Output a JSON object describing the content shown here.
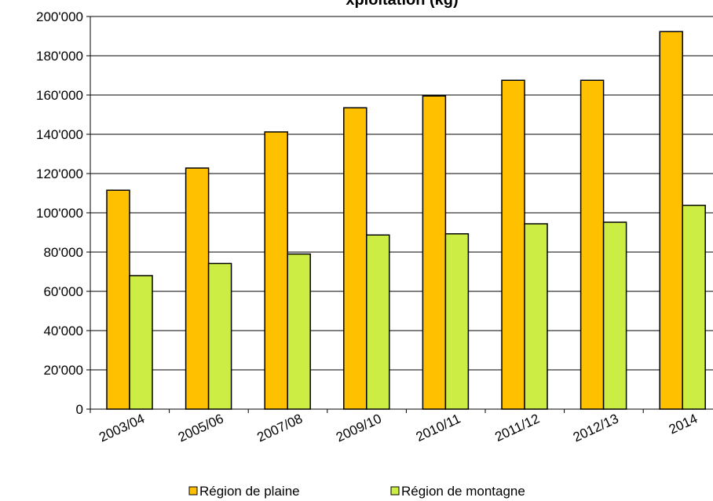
{
  "chart_data": {
    "type": "bar",
    "title": "xploitation (kg)",
    "categories": [
      "2003/04",
      "2005/06",
      "2007/08",
      "2009/10",
      "2010/11",
      "2011/12",
      "2012/13",
      "2014"
    ],
    "series": [
      {
        "name": "Région de plaine",
        "color": "#FFC000",
        "values": [
          111500,
          122800,
          141200,
          153500,
          159500,
          167500,
          167500,
          192300
        ]
      },
      {
        "name": "Région de montagne",
        "color": "#CCEE44",
        "values": [
          68000,
          74200,
          79000,
          88700,
          89300,
          94400,
          95200,
          103800
        ]
      }
    ],
    "ylim": [
      0,
      200000
    ],
    "yticks": [
      "0",
      "20'000",
      "40'000",
      "60'000",
      "80'000",
      "100'000",
      "120'000",
      "140'000",
      "160'000",
      "180'000",
      "200'000"
    ],
    "ytick_values": [
      0,
      20000,
      40000,
      60000,
      80000,
      100000,
      120000,
      140000,
      160000,
      180000,
      200000
    ],
    "grid": true,
    "legend_position": "bottom"
  }
}
